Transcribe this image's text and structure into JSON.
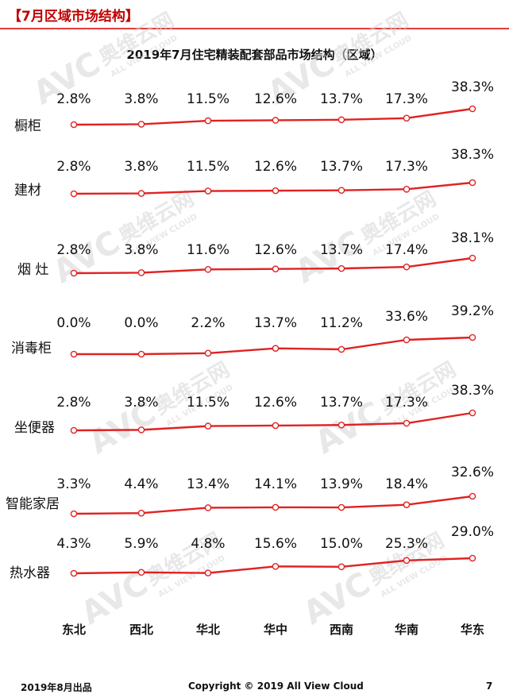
{
  "header": {
    "section_title": "【7月区域市场结构】"
  },
  "footer": {
    "left": "2019年8月出品",
    "center": "Copyright © 2019 All View Cloud",
    "page": "7"
  },
  "watermark": {
    "brand": "奥维云网",
    "logo": "AVC",
    "sub": "ALL VIEW CLOUD"
  },
  "colors": {
    "line": "#e02222",
    "marker_fill": "#ffffff",
    "title_red": "#c00000"
  },
  "chart_data": {
    "type": "line",
    "title": "2019年7月住宅精装配套部品市场结构（区域）",
    "categories": [
      "东北",
      "西北",
      "华北",
      "华中",
      "西南",
      "华南",
      "华东"
    ],
    "value_format": "percent",
    "series": [
      {
        "name": "橱柜",
        "values": [
          2.8,
          3.8,
          11.5,
          12.6,
          13.7,
          17.3,
          38.3
        ]
      },
      {
        "name": "建材",
        "values": [
          2.8,
          3.8,
          11.5,
          12.6,
          13.7,
          17.3,
          38.3
        ]
      },
      {
        "name": "烟 灶",
        "values": [
          2.8,
          3.8,
          11.6,
          12.6,
          13.7,
          17.4,
          38.1
        ]
      },
      {
        "name": "消毒柜",
        "values": [
          0.0,
          0.0,
          2.2,
          13.7,
          11.2,
          33.6,
          39.2
        ]
      },
      {
        "name": "坐便器",
        "values": [
          2.8,
          3.8,
          11.5,
          12.6,
          13.7,
          17.3,
          38.3
        ]
      },
      {
        "name": "智能家居",
        "values": [
          3.3,
          4.4,
          13.4,
          14.1,
          13.9,
          18.4,
          32.6
        ]
      },
      {
        "name": "热水器",
        "values": [
          4.3,
          5.9,
          4.8,
          15.6,
          15.0,
          25.3,
          29.0
        ]
      }
    ]
  }
}
